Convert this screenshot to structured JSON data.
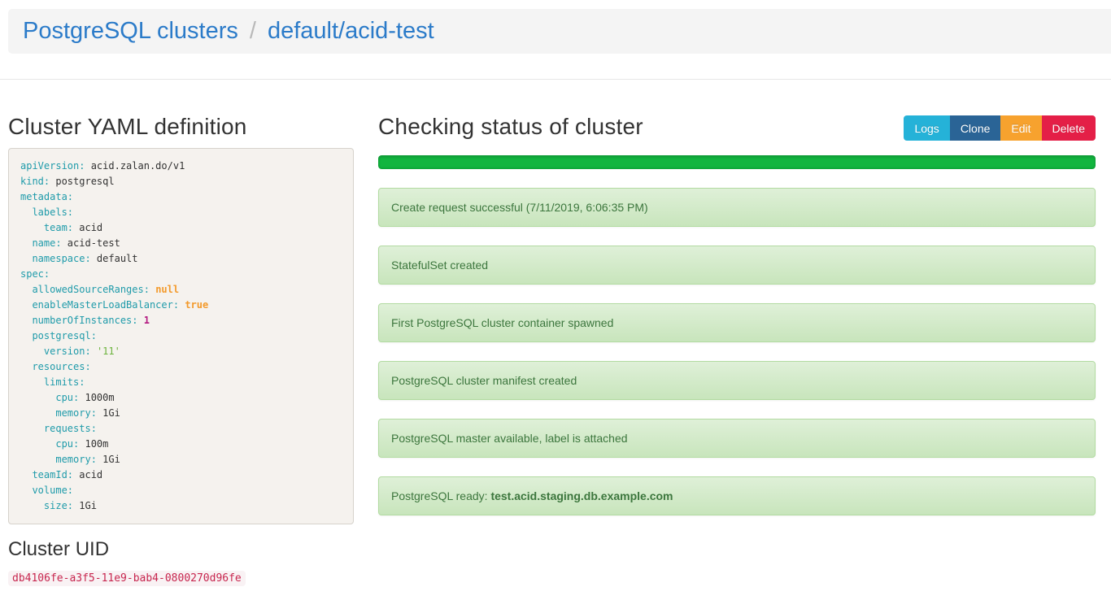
{
  "header": {
    "breadcrumb": [
      {
        "label": "PostgreSQL clusters"
      },
      {
        "label": "default/acid-test"
      }
    ],
    "separator": "/"
  },
  "left": {
    "yaml_title": "Cluster YAML definition",
    "uid_title": "Cluster UID",
    "uid_value": "db4106fe-a3f5-11e9-bab4-0800270d96fe",
    "yaml_lines": [
      [
        {
          "text": "apiVersion:",
          "type": "key"
        },
        {
          "text": " acid.zalan.do/v1",
          "type": "plain"
        }
      ],
      [
        {
          "text": "kind:",
          "type": "key"
        },
        {
          "text": " postgresql",
          "type": "plain"
        }
      ],
      [
        {
          "text": "metadata:",
          "type": "key"
        }
      ],
      [
        {
          "text": "  labels:",
          "type": "key"
        }
      ],
      [
        {
          "text": "    team:",
          "type": "key"
        },
        {
          "text": " acid",
          "type": "plain"
        }
      ],
      [
        {
          "text": "  name:",
          "type": "key"
        },
        {
          "text": " acid-test",
          "type": "plain"
        }
      ],
      [
        {
          "text": "  namespace:",
          "type": "key"
        },
        {
          "text": " default",
          "type": "plain"
        }
      ],
      [
        {
          "text": "spec:",
          "type": "key"
        }
      ],
      [
        {
          "text": "  allowedSourceRanges:",
          "type": "key"
        },
        {
          "text": " ",
          "type": "plain"
        },
        {
          "text": "null",
          "type": "literal"
        }
      ],
      [
        {
          "text": "  enableMasterLoadBalancer:",
          "type": "key"
        },
        {
          "text": " ",
          "type": "plain"
        },
        {
          "text": "true",
          "type": "literal"
        }
      ],
      [
        {
          "text": "  numberOfInstances:",
          "type": "key"
        },
        {
          "text": " ",
          "type": "plain"
        },
        {
          "text": "1",
          "type": "number"
        }
      ],
      [
        {
          "text": "  postgresql:",
          "type": "key"
        }
      ],
      [
        {
          "text": "    version:",
          "type": "key"
        },
        {
          "text": " ",
          "type": "plain"
        },
        {
          "text": "'11'",
          "type": "string"
        }
      ],
      [
        {
          "text": "  resources:",
          "type": "key"
        }
      ],
      [
        {
          "text": "    limits:",
          "type": "key"
        }
      ],
      [
        {
          "text": "      cpu:",
          "type": "key"
        },
        {
          "text": " 1000m",
          "type": "plain"
        }
      ],
      [
        {
          "text": "      memory:",
          "type": "key"
        },
        {
          "text": " 1Gi",
          "type": "plain"
        }
      ],
      [
        {
          "text": "    requests:",
          "type": "key"
        }
      ],
      [
        {
          "text": "      cpu:",
          "type": "key"
        },
        {
          "text": " 100m",
          "type": "plain"
        }
      ],
      [
        {
          "text": "      memory:",
          "type": "key"
        },
        {
          "text": " 1Gi",
          "type": "plain"
        }
      ],
      [
        {
          "text": "  teamId:",
          "type": "key"
        },
        {
          "text": " acid",
          "type": "plain"
        }
      ],
      [
        {
          "text": "  volume:",
          "type": "key"
        }
      ],
      [
        {
          "text": "    size:",
          "type": "key"
        },
        {
          "text": " 1Gi",
          "type": "plain"
        }
      ]
    ]
  },
  "right": {
    "status_title": "Checking status of cluster",
    "buttons": [
      {
        "label": "Logs",
        "color": "#25b2d8"
      },
      {
        "label": "Clone",
        "color": "#2a6496"
      },
      {
        "label": "Edit",
        "color": "#f7a22e"
      },
      {
        "label": "Delete",
        "color": "#e41f47"
      }
    ],
    "progress": {
      "value_percent": 100,
      "color": "#12b53f"
    },
    "alerts": [
      {
        "segments": [
          {
            "text": "Create request successful (7/11/2019, 6:06:35 PM)",
            "bold": false
          }
        ]
      },
      {
        "segments": [
          {
            "text": "StatefulSet created",
            "bold": false
          }
        ]
      },
      {
        "segments": [
          {
            "text": "First PostgreSQL cluster container spawned",
            "bold": false
          }
        ]
      },
      {
        "segments": [
          {
            "text": "PostgreSQL cluster manifest created",
            "bold": false
          }
        ]
      },
      {
        "segments": [
          {
            "text": "PostgreSQL master available, label is attached",
            "bold": false
          }
        ]
      },
      {
        "segments": [
          {
            "text": "PostgreSQL ready: ",
            "bold": false
          },
          {
            "text": "test.acid.staging.db.example.com",
            "bold": true
          }
        ]
      }
    ]
  }
}
